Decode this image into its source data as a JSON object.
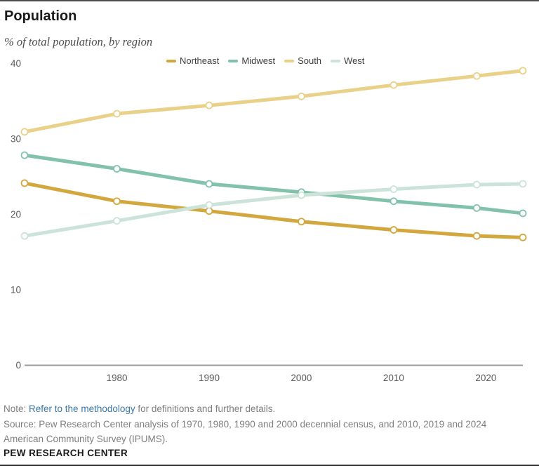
{
  "header": {
    "title": "Population",
    "subtitle": "% of total population, by region"
  },
  "chart_data": {
    "type": "line",
    "title": "Population",
    "subtitle": "% of total population, by region",
    "x": [
      1970,
      1980,
      1990,
      2000,
      2010,
      2019,
      2024
    ],
    "x_tick_labels": [
      "1980",
      "1990",
      "2000",
      "2010",
      "2020"
    ],
    "x_tick_years": [
      1980,
      1990,
      2000,
      2010,
      2020
    ],
    "y_ticks": [
      0,
      10,
      20,
      30,
      40
    ],
    "ylim": [
      0,
      40
    ],
    "xlim": [
      1970,
      2024
    ],
    "grid": false,
    "legend_position": "top",
    "marker": "open-circle",
    "series": [
      {
        "name": "Northeast",
        "color": "#d2a73d",
        "values": [
          24.1,
          21.7,
          20.4,
          19.0,
          17.9,
          17.1,
          16.9
        ]
      },
      {
        "name": "Midwest",
        "color": "#82c2ab",
        "values": [
          27.8,
          26.0,
          24.0,
          22.9,
          21.7,
          20.8,
          20.1
        ]
      },
      {
        "name": "South",
        "color": "#e9d189",
        "values": [
          30.9,
          33.3,
          34.4,
          35.6,
          37.1,
          38.3,
          39.0
        ]
      },
      {
        "name": "West",
        "color": "#cbe3d9",
        "values": [
          17.1,
          19.1,
          21.2,
          22.5,
          23.3,
          23.9,
          24.0
        ]
      }
    ],
    "axis_color": "#9b9b9b"
  },
  "footer": {
    "note_prefix": "Note: ",
    "note_link": "Refer to the methodology",
    "note_suffix": " for definitions and further details.",
    "source": "Source: Pew Research Center analysis of 1970, 1980, 1990 and 2000 decennial census, and 2010, 2019 and 2024 American Community Survey (IPUMS).",
    "brand": "PEW RESEARCH CENTER"
  }
}
